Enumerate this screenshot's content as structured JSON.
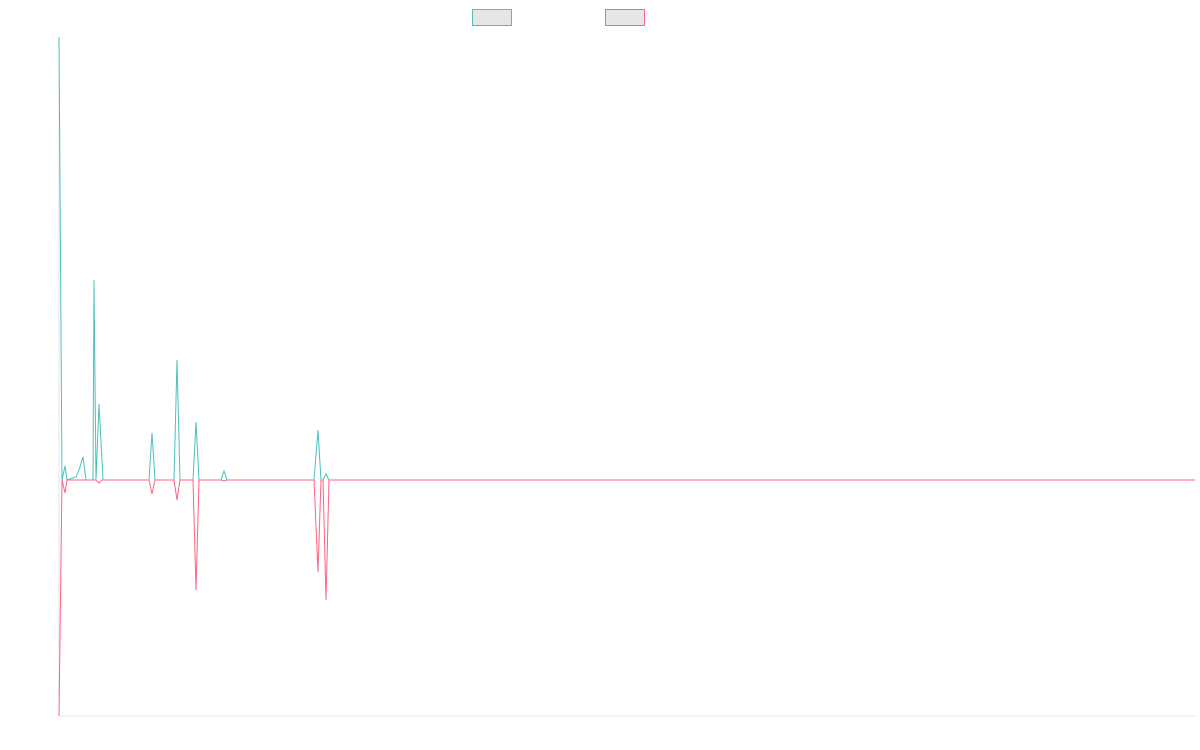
{
  "chart_data": {
    "type": "line",
    "title": "",
    "xlabel": "",
    "ylabel": "",
    "legend_position": "top-center",
    "grid": false,
    "xlim": [
      0,
      1136
    ],
    "ylim": [
      -236,
      443
    ],
    "series": [
      {
        "color": "#4bc0c0",
        "legend_fill": "#e6e6e6",
        "points": [
          [
            0,
            443
          ],
          [
            3,
            0
          ],
          [
            6,
            14
          ],
          [
            8,
            0
          ],
          [
            17,
            3
          ],
          [
            20,
            10
          ],
          [
            24,
            23
          ],
          [
            27,
            0
          ],
          [
            34,
            0
          ],
          [
            35,
            200
          ],
          [
            37,
            0
          ],
          [
            40,
            76
          ],
          [
            44,
            0
          ],
          [
            90,
            0
          ],
          [
            93,
            47
          ],
          [
            96,
            0
          ],
          [
            115,
            0
          ],
          [
            118,
            120
          ],
          [
            121,
            0
          ],
          [
            134,
            0
          ],
          [
            137,
            58
          ],
          [
            140,
            0
          ],
          [
            162,
            0
          ],
          [
            165,
            9
          ],
          [
            168,
            0
          ],
          [
            255,
            0
          ],
          [
            259,
            50
          ],
          [
            262,
            0
          ],
          [
            264,
            0
          ],
          [
            267,
            6
          ],
          [
            270,
            0
          ],
          [
            1136,
            0
          ]
        ]
      },
      {
        "color": "#ff6384",
        "legend_fill": "#e6e6e6",
        "points": [
          [
            0,
            -236
          ],
          [
            3,
            0
          ],
          [
            6,
            -13
          ],
          [
            8,
            0
          ],
          [
            24,
            0
          ],
          [
            27,
            0
          ],
          [
            37,
            0
          ],
          [
            40,
            -3
          ],
          [
            43,
            0
          ],
          [
            90,
            0
          ],
          [
            93,
            -14
          ],
          [
            96,
            0
          ],
          [
            115,
            0
          ],
          [
            118,
            -20
          ],
          [
            121,
            0
          ],
          [
            134,
            0
          ],
          [
            137,
            -110
          ],
          [
            140,
            0
          ],
          [
            162,
            0
          ],
          [
            165,
            -1
          ],
          [
            168,
            0
          ],
          [
            255,
            0
          ],
          [
            259,
            -92
          ],
          [
            262,
            0
          ],
          [
            264,
            0
          ],
          [
            267,
            -120
          ],
          [
            270,
            0
          ],
          [
            1136,
            0
          ]
        ]
      }
    ]
  }
}
